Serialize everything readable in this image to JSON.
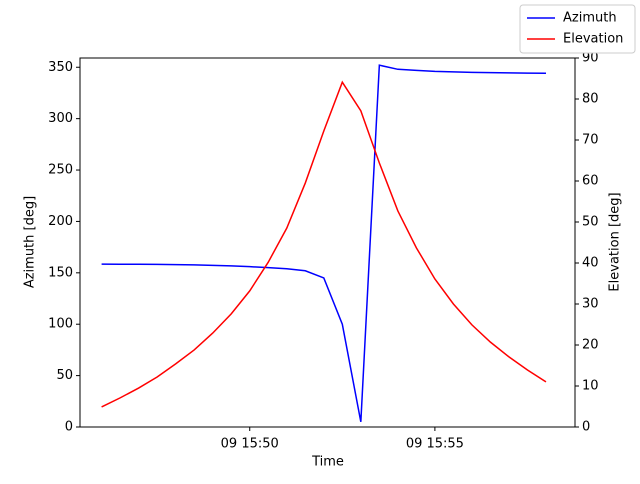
{
  "chart_data": {
    "type": "line",
    "x": [
      "09 15:46:00",
      "09 15:46:30",
      "09 15:47:00",
      "09 15:47:30",
      "09 15:48:00",
      "09 15:48:30",
      "09 15:49:00",
      "09 15:49:30",
      "09 15:50:00",
      "09 15:50:30",
      "09 15:51:00",
      "09 15:51:30",
      "09 15:52:00",
      "09 15:52:30",
      "09 15:53:00",
      "09 15:53:30",
      "09 15:54:00",
      "09 15:54:30",
      "09 15:55:00",
      "09 15:55:30",
      "09 15:56:00",
      "09 15:56:30",
      "09 15:57:00",
      "09 15:57:30",
      "09 15:58:00"
    ],
    "series": [
      {
        "name": "Azimuth",
        "color": "#0000ff",
        "values": [
          158.5,
          158.4,
          158.3,
          158.2,
          158,
          157.7,
          157.3,
          156.8,
          156,
          155,
          154,
          152,
          145,
          100,
          5,
          352,
          348,
          347,
          346,
          345.5,
          345,
          344.8,
          344.5,
          344.3,
          344.2
        ]
      },
      {
        "name": "Elevation",
        "color": "#ff0000",
        "axis": "y2",
        "values": [
          4.9,
          7.1,
          9.5,
          12.2,
          15.4,
          18.8,
          22.9,
          27.6,
          33.2,
          40.2,
          48.5,
          59.5,
          72.2,
          84.1,
          77.1,
          64.4,
          52.7,
          43.7,
          36.1,
          30.0,
          24.9,
          20.7,
          17.1,
          13.9,
          11.0
        ]
      }
    ],
    "xlabel": "Time",
    "ylabel": "Azimuth [deg]",
    "y2label": "Elevation [deg]",
    "xlim": [
      "09 15:45:25",
      "09 15:58:47"
    ],
    "xticks": [
      "09 15:50",
      "09 15:55"
    ],
    "ylim": [
      0,
      359
    ],
    "yticks": [
      0,
      50,
      100,
      150,
      200,
      250,
      300,
      350
    ],
    "y2lim": [
      0,
      90
    ],
    "y2ticks": [
      0,
      10,
      20,
      30,
      40,
      50,
      60,
      70,
      80,
      90
    ],
    "legend": "upper right"
  }
}
